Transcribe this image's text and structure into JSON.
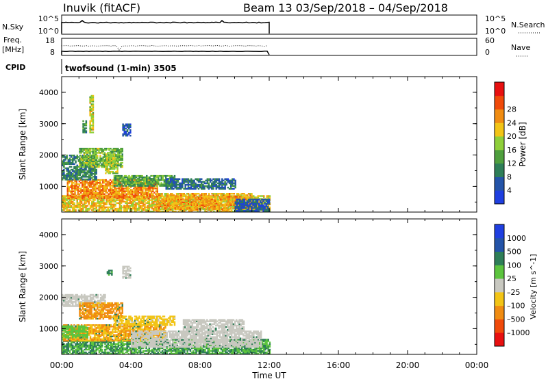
{
  "header": {
    "title": "Inuvik (fitACF)",
    "beam_text": "Beam 13 03/Sep/2018 – 04/Sep/2018"
  },
  "panels": {
    "nsky": {
      "left_label": "N.Sky",
      "left_ticks": [
        "10^5",
        "10^0"
      ],
      "right_label": "N.Search",
      "right_ticks": [
        "10^5",
        "10^0"
      ]
    },
    "freq": {
      "left_label_1": "Freq.",
      "left_label_2": "[MHz]",
      "left_ticks": [
        "18",
        "8"
      ],
      "right_label": "Nave",
      "right_ticks": [
        "60",
        "0"
      ]
    },
    "cpid": {
      "label": "CPID",
      "text": "twofsound (1-min) 3505"
    }
  },
  "chart_data": [
    {
      "type": "heatmap",
      "title": "",
      "parameter": "Power",
      "xlabel": "",
      "ylabel": "Slant Range [km]",
      "x_ticks": [
        "00:00",
        "04:00",
        "08:00",
        "12:00",
        "16:00",
        "20:00",
        "00:00"
      ],
      "y_ticks": [
        1000,
        2000,
        3000,
        4000
      ],
      "xlim_hours": [
        0,
        24
      ],
      "ylim_km": [
        180,
        4500
      ],
      "data_extent_hours": [
        0,
        12
      ],
      "colorbar": {
        "label": "Power [dB]",
        "min": 0,
        "max": 32,
        "tick_values": [
          4,
          8,
          12,
          16,
          20,
          24,
          28
        ],
        "colors": [
          "#1f3fe0",
          "#2454a8",
          "#2e7e58",
          "#4f9f3e",
          "#8fcf3a",
          "#f2c416",
          "#f08c12",
          "#f04a0a",
          "#e81010"
        ]
      },
      "regions": [
        {
          "t0": 0.0,
          "t1": 12.0,
          "r0": 180,
          "r1": 700,
          "value": 22
        },
        {
          "t0": 0.3,
          "t1": 5.5,
          "r0": 600,
          "r1": 1200,
          "value": 26
        },
        {
          "t0": 5.5,
          "t1": 11.0,
          "r0": 250,
          "r1": 750,
          "value": 24
        },
        {
          "t0": 3.0,
          "t1": 6.5,
          "r0": 1000,
          "r1": 1350,
          "value": 14
        },
        {
          "t0": 0.0,
          "t1": 2.0,
          "r0": 1200,
          "r1": 2000,
          "value": 10
        },
        {
          "t0": 1.0,
          "t1": 3.5,
          "r0": 1600,
          "r1": 2200,
          "value": 16
        },
        {
          "t0": 2.5,
          "t1": 3.2,
          "r0": 1400,
          "r1": 2000,
          "value": 18
        },
        {
          "t0": 3.5,
          "t1": 4.0,
          "r0": 2600,
          "r1": 3000,
          "value": 6
        },
        {
          "t0": 6.0,
          "t1": 10.0,
          "r0": 900,
          "r1": 1250,
          "value": 8
        },
        {
          "t0": 1.6,
          "t1": 1.8,
          "r0": 2700,
          "r1": 3900,
          "value": 20
        },
        {
          "t0": 1.2,
          "t1": 1.4,
          "r0": 2700,
          "r1": 3100,
          "value": 12
        },
        {
          "t0": 10.0,
          "t1": 12.0,
          "r0": 200,
          "r1": 600,
          "value": 6
        }
      ]
    },
    {
      "type": "heatmap",
      "title": "",
      "parameter": "Velocity",
      "xlabel": "Time UT",
      "ylabel": "Slant Range [km]",
      "x_ticks": [
        "00:00",
        "04:00",
        "08:00",
        "12:00",
        "16:00",
        "20:00",
        "00:00"
      ],
      "y_ticks": [
        1000,
        2000,
        3000,
        4000
      ],
      "xlim_hours": [
        0,
        24
      ],
      "ylim_km": [
        180,
        4500
      ],
      "data_extent_hours": [
        0,
        12
      ],
      "colorbar": {
        "label": "Velocity [m s^-1]",
        "tick_labels": [
          "1000",
          "500",
          "100",
          "25",
          "–25",
          "–100",
          "–500",
          "–1000"
        ],
        "colors": [
          "#1f3fe0",
          "#2454a8",
          "#2e7e58",
          "#5cc43e",
          "#c8c8c0",
          "#f2c416",
          "#f08c12",
          "#f04a0a",
          "#e81010"
        ]
      },
      "regions": [
        {
          "t0": 0.0,
          "t1": 12.0,
          "r0": 180,
          "r1": 650,
          "value": 100
        },
        {
          "t0": 0.0,
          "t1": 6.0,
          "r0": 600,
          "r1": 1100,
          "value": -100
        },
        {
          "t0": 4.0,
          "t1": 11.5,
          "r0": 400,
          "r1": 900,
          "value": 0
        },
        {
          "t0": 0.0,
          "t1": 2.5,
          "r0": 1700,
          "r1": 2100,
          "value": 0
        },
        {
          "t0": 1.0,
          "t1": 3.5,
          "r0": 1300,
          "r1": 1800,
          "value": -150
        },
        {
          "t0": 3.0,
          "t1": 6.5,
          "r0": 1100,
          "r1": 1400,
          "value": -50
        },
        {
          "t0": 7.0,
          "t1": 10.5,
          "r0": 900,
          "r1": 1300,
          "value": 0
        },
        {
          "t0": 3.5,
          "t1": 4.0,
          "r0": 2600,
          "r1": 3000,
          "value": 0
        },
        {
          "t0": 2.6,
          "t1": 2.9,
          "r0": 2700,
          "r1": 2850,
          "value": 150
        },
        {
          "t0": 0.0,
          "t1": 1.5,
          "r0": 700,
          "r1": 1100,
          "value": 60
        }
      ]
    }
  ]
}
